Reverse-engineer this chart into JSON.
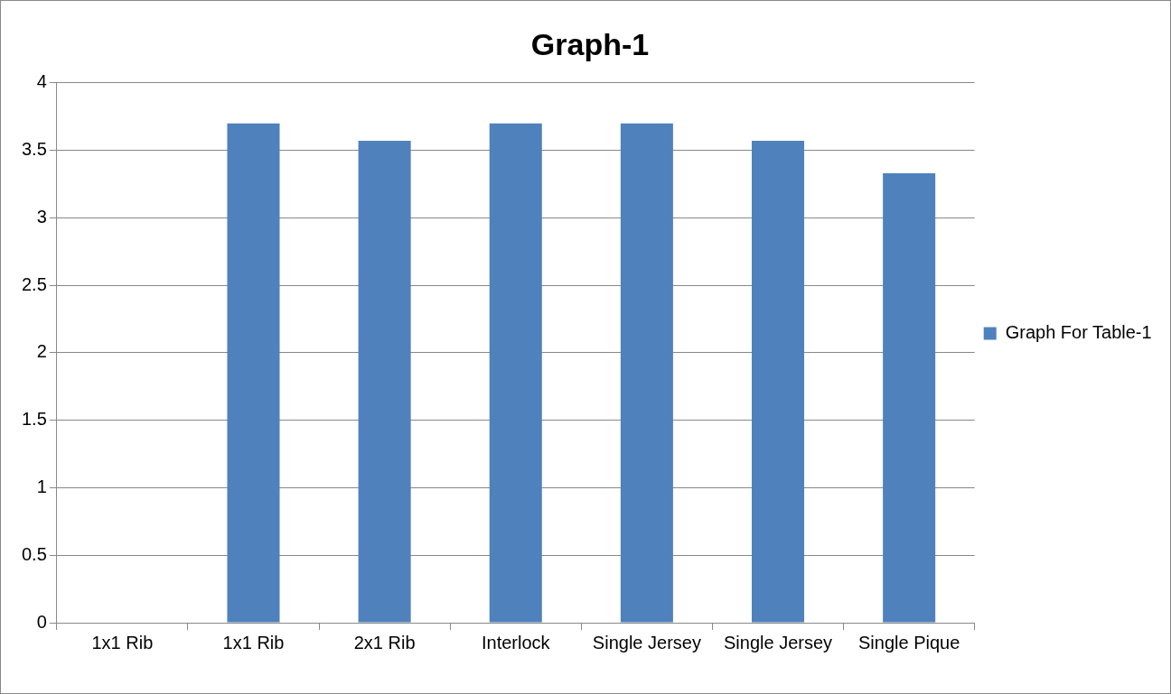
{
  "chart_data": {
    "type": "bar",
    "title": "Graph-1",
    "categories": [
      "1x1 Rib",
      "1x1 Rib",
      "2x1 Rib",
      "Interlock",
      "Single Jersey",
      "Single Jersey",
      "Single Pique"
    ],
    "series": [
      {
        "name": "Graph For Table-1",
        "color": "#4f81bd",
        "values": [
          0,
          3.7,
          3.57,
          3.7,
          3.7,
          3.57,
          3.33
        ]
      }
    ],
    "ylim": [
      0,
      4
    ],
    "yticks": [
      0,
      0.5,
      1,
      1.5,
      2,
      2.5,
      3,
      3.5,
      4
    ],
    "grid": "y",
    "legend": "right"
  }
}
